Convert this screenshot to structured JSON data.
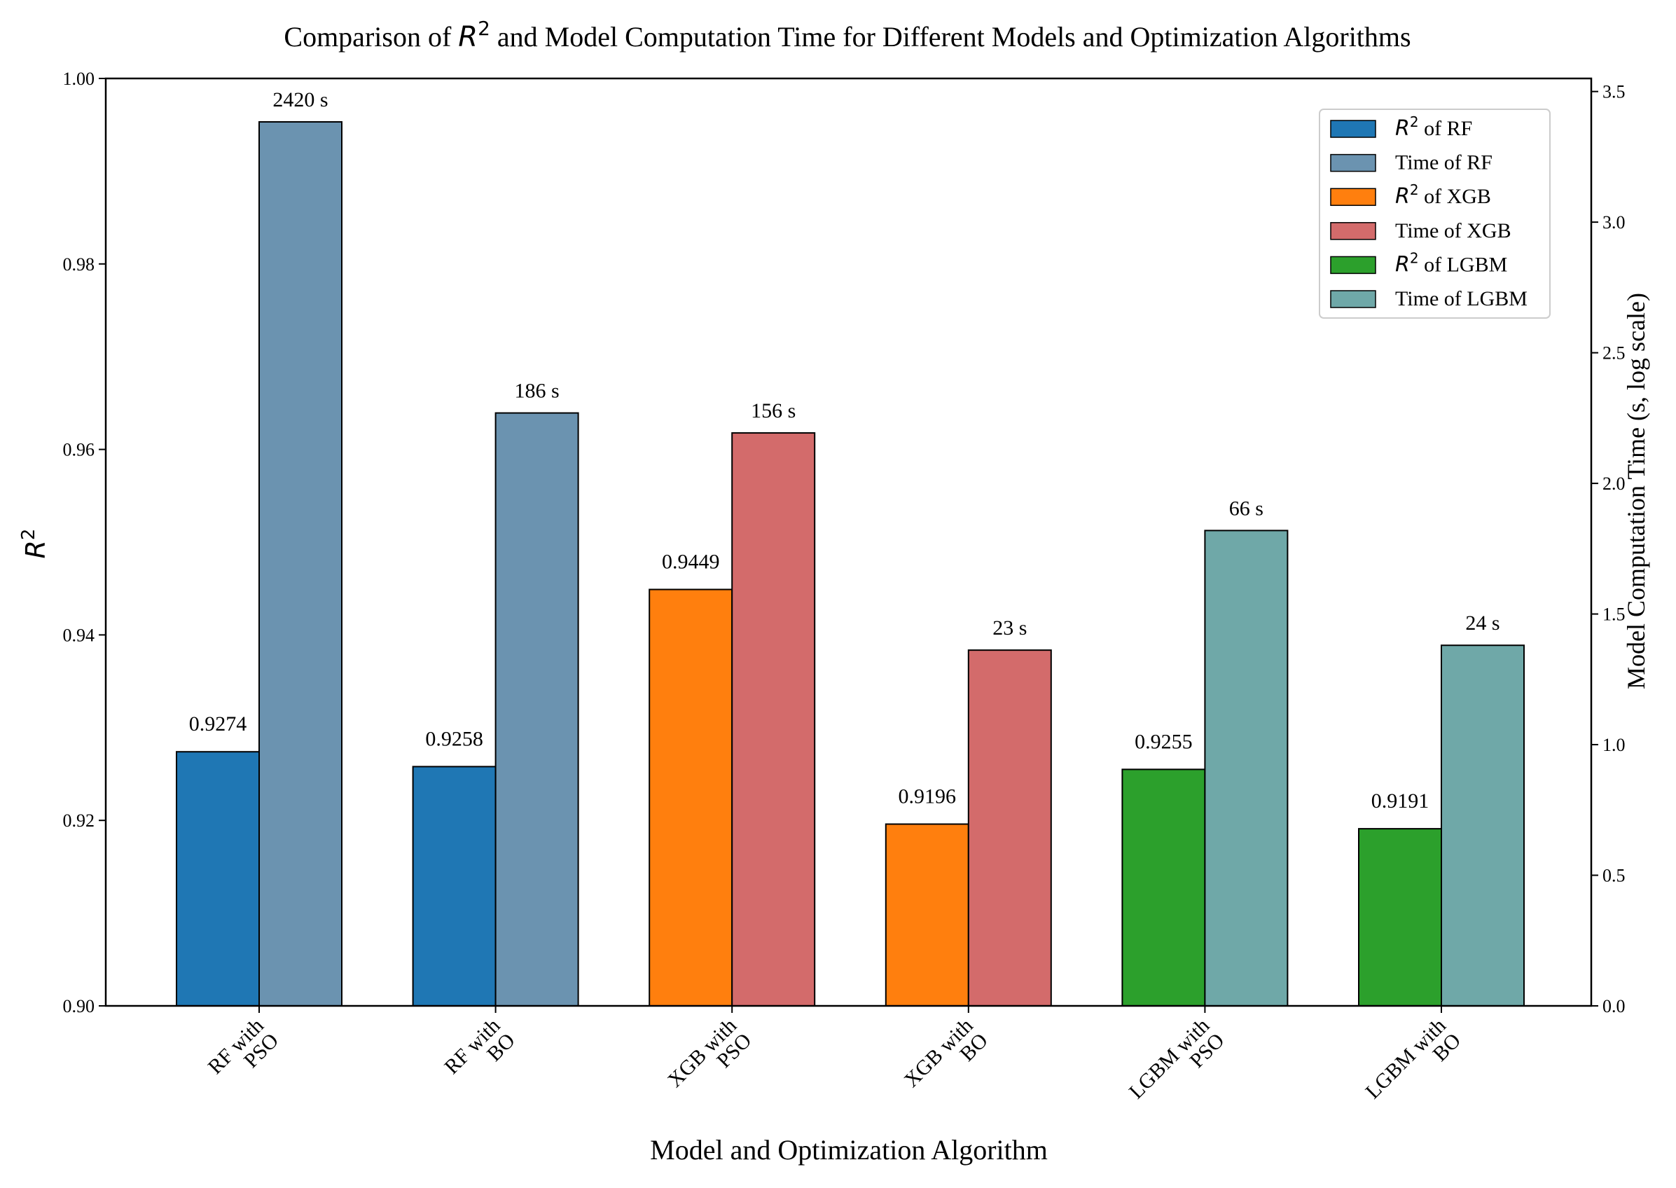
{
  "chart_data": {
    "type": "bar",
    "title_prefix": "Comparison of ",
    "title_r": "R",
    "title_sup": "2",
    "title_suffix": " and Model Computation Time for Different Models and Optimization Algorithms",
    "xlabel": "Model and Optimization Algorithm",
    "ylabel_left_base": "R",
    "ylabel_left_sup": "2",
    "ylabel_right": "Model Computation Time (s, log scale)",
    "ylim_left": [
      0.9,
      1.0
    ],
    "ylim_right": [
      0.0,
      3.55
    ],
    "left_ticks": [
      "0.90",
      "0.92",
      "0.94",
      "0.96",
      "0.98",
      "1.00"
    ],
    "right_ticks": [
      "0.0",
      "0.5",
      "1.0",
      "1.5",
      "2.0",
      "2.5",
      "3.0",
      "3.5"
    ],
    "categories": [
      [
        "RF with",
        "PSO"
      ],
      [
        "RF with",
        "BO"
      ],
      [
        "XGB with",
        "PSO"
      ],
      [
        "XGB with",
        "BO"
      ],
      [
        "LGBM with",
        "PSO"
      ],
      [
        "LGBM with",
        "BO"
      ]
    ],
    "r2_values": [
      0.9274,
      0.9258,
      0.9449,
      0.9196,
      0.9255,
      0.9191
    ],
    "r2_labels": [
      "0.9274",
      "0.9258",
      "0.9449",
      "0.9196",
      "0.9255",
      "0.9191"
    ],
    "time_seconds": [
      2420,
      186,
      156,
      23,
      66,
      24
    ],
    "time_labels": [
      "2420 s",
      "186 s",
      "156 s",
      "23 s",
      "66 s",
      "24 s"
    ],
    "r2_colors": [
      "#1f77b4",
      "#1f77b4",
      "#ff7f0e",
      "#ff7f0e",
      "#2ca02c",
      "#2ca02c"
    ],
    "time_colors": [
      "#6b93b0",
      "#6b93b0",
      "#d36b6b",
      "#d36b6b",
      "#6fa8a8",
      "#6fa8a8"
    ],
    "legend_position": "top-right",
    "legend": [
      {
        "kind": "r2",
        "label_base": "R",
        "label_sup": "2",
        "label_rest": " of RF",
        "color": "#1f77b4"
      },
      {
        "kind": "time",
        "label": "Time of RF",
        "color": "#6b93b0"
      },
      {
        "kind": "r2",
        "label_base": "R",
        "label_sup": "2",
        "label_rest": " of XGB",
        "color": "#ff7f0e"
      },
      {
        "kind": "time",
        "label": "Time of XGB",
        "color": "#d36b6b"
      },
      {
        "kind": "r2",
        "label_base": "R",
        "label_sup": "2",
        "label_rest": " of LGBM",
        "color": "#2ca02c"
      },
      {
        "kind": "time",
        "label": "Time of LGBM",
        "color": "#6fa8a8"
      }
    ]
  }
}
